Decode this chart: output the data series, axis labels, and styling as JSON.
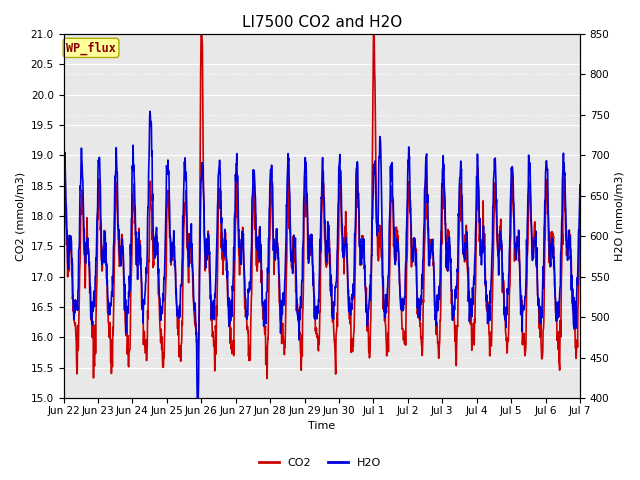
{
  "title": "LI7500 CO2 and H2O",
  "xlabel": "Time",
  "ylabel_left": "CO2 (mmol/m3)",
  "ylabel_right": "H2O (mmol/m3)",
  "watermark_text": "WP_flux",
  "watermark_color": "#8B0000",
  "watermark_bg": "#FFFF99",
  "watermark_edge": "#AAAA00",
  "co2_color": "#CC0000",
  "h2o_color": "#0000DD",
  "plot_bg_color": "#E8E8E8",
  "grid_color": "#FFFFFF",
  "ylim_co2": [
    15.0,
    21.0
  ],
  "ylim_h2o": [
    400,
    850
  ],
  "yticks_co2": [
    15.0,
    15.5,
    16.0,
    16.5,
    17.0,
    17.5,
    18.0,
    18.5,
    19.0,
    19.5,
    20.0,
    20.5,
    21.0
  ],
  "yticks_h2o": [
    400,
    450,
    500,
    550,
    600,
    650,
    700,
    750,
    800,
    850
  ],
  "x_tick_labels": [
    "Jun 22",
    "Jun 23",
    "Jun 24",
    "Jun 25",
    "Jun 26",
    "Jun 27",
    "Jun 28",
    "Jun 29",
    "Jun 30",
    "Jul 1",
    "Jul 2",
    "Jul 3",
    "Jul 4",
    "Jul 5",
    "Jul 6",
    "Jul 7"
  ],
  "title_fontsize": 11,
  "axis_label_fontsize": 8,
  "tick_fontsize": 7.5,
  "legend_fontsize": 8,
  "linewidth": 1.2
}
